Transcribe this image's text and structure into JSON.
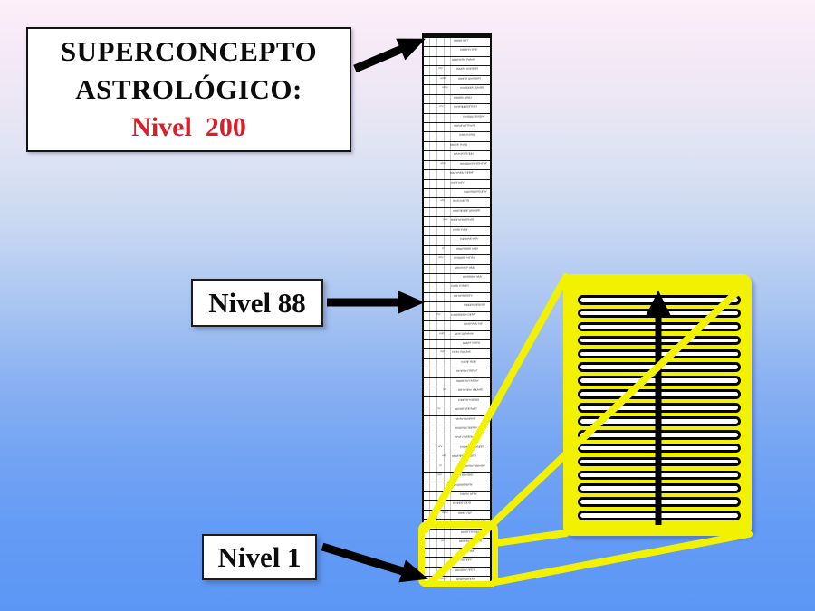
{
  "title_box": {
    "line1": "SUPERCONCEPTO",
    "line2": "ASTROLÓGICO:",
    "line3": "Nivel  200"
  },
  "labels": {
    "nivel88": "Nivel 88",
    "nivel1": "Nivel 1"
  },
  "colors": {
    "highlight_yellow": "#f2f200",
    "level_red": "#d8202a",
    "bg_top": "#fdeff9",
    "bg_bottom": "#5c96f5",
    "arrow_black": "#000000"
  },
  "figure": {
    "tower": {
      "rows": 58,
      "guide_lines": 4
    },
    "zoom_detail": {
      "bars": 17
    }
  }
}
